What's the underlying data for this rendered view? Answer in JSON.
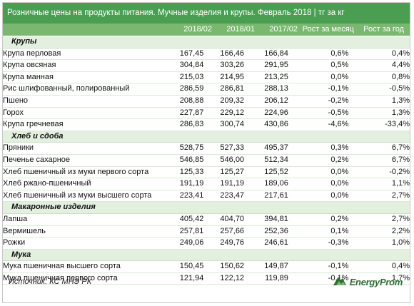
{
  "title": "Розничные цены на продукты питания. Мучные изделия и крупы. Февраль 2018 | тг за кг",
  "columns": [
    "2018/02",
    "2018/01",
    "2017/02",
    "Рост за месяц",
    "Рост за год"
  ],
  "sections": [
    {
      "name": "Крупы",
      "rows": [
        [
          "Крупа перловая",
          "167,45",
          "166,46",
          "166,84",
          "0,6%",
          "0,4%"
        ],
        [
          "Крупа овсяная",
          "304,84",
          "303,26",
          "291,95",
          "0,5%",
          "4,4%"
        ],
        [
          "Крупа манная",
          "215,03",
          "214,95",
          "213,25",
          "0,0%",
          "0,8%"
        ],
        [
          "Рис шлифованный, полированный",
          "286,59",
          "286,81",
          "288,13",
          "-0,1%",
          "-0,5%"
        ],
        [
          "Пшено",
          "208,88",
          "209,32",
          "206,12",
          "-0,2%",
          "1,3%"
        ],
        [
          "Горох",
          "227,87",
          "229,12",
          "224,96",
          "-0,5%",
          "1,3%"
        ],
        [
          "Крупа гречневая",
          "286,83",
          "300,74",
          "430,86",
          "-4,6%",
          "-33,4%"
        ]
      ]
    },
    {
      "name": "Хлеб и сдоба",
      "rows": [
        [
          "Пряники",
          "528,75",
          "527,33",
          "495,37",
          "0,3%",
          "6,7%"
        ],
        [
          "Печенье сахарное",
          "546,85",
          "546,00",
          "512,34",
          "0,2%",
          "6,7%"
        ],
        [
          "Хлеб пшеничный из муки первого сорта",
          "125,33",
          "125,27",
          "125,52",
          "0,0%",
          "-0,2%"
        ],
        [
          "Хлеб ржано-пшеничный",
          "191,19",
          "191,19",
          "189,06",
          "0,0%",
          "1,1%"
        ],
        [
          "Хлеб пшеничный из муки высшего сорта",
          "223,41",
          "223,47",
          "217,61",
          "0,0%",
          "2,7%"
        ]
      ]
    },
    {
      "name": "Макаронные изделия",
      "rows": [
        [
          "Лапша",
          "405,42",
          "404,70",
          "394,81",
          "0,2%",
          "2,7%"
        ],
        [
          "Вермишель",
          "257,81",
          "257,66",
          "252,36",
          "0,1%",
          "2,2%"
        ],
        [
          "Рожки",
          "249,06",
          "249,76",
          "246,61",
          "-0,3%",
          "1,0%"
        ]
      ]
    },
    {
      "name": "Мука",
      "rows": [
        [
          "Мука пшеничная высшего сорта",
          "150,45",
          "150,62",
          "149,87",
          "-0,1%",
          "0,4%"
        ],
        [
          "Мука пшеничная первого сорта",
          "121,94",
          "122,12",
          "119,89",
          "-0,1%",
          "1,7%"
        ]
      ]
    }
  ],
  "source": "Источник: КС МНЭ РК",
  "brand": "EnergyProm",
  "colors": {
    "title_bg": "#4a9e52",
    "header_bg": "#7ab86f",
    "category_bg": "#e3f0df",
    "brand": "#2f6e35"
  }
}
